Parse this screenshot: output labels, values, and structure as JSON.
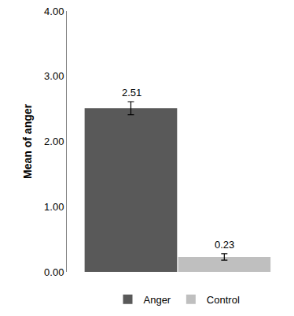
{
  "chart_data": {
    "type": "bar",
    "y_label": "Mean of anger",
    "categories": [
      null
    ],
    "series": [
      {
        "name": "Anger",
        "color": "#595959",
        "values": [
          2.51
        ],
        "errors": [
          0.1
        ]
      },
      {
        "name": "Control",
        "color": "#bfbfbf",
        "values": [
          0.23
        ],
        "errors": [
          0.05
        ]
      }
    ],
    "ylim": [
      0,
      4
    ],
    "yticks": [
      {
        "value": 0,
        "label": "0.00"
      },
      {
        "value": 1,
        "label": "1.00"
      },
      {
        "value": 2,
        "label": "2.00"
      },
      {
        "value": 3,
        "label": "3.00"
      },
      {
        "value": 4,
        "label": "4.00"
      }
    ],
    "grid": false,
    "legend": "bottom",
    "data_labels": true,
    "tick_labels": "y"
  }
}
